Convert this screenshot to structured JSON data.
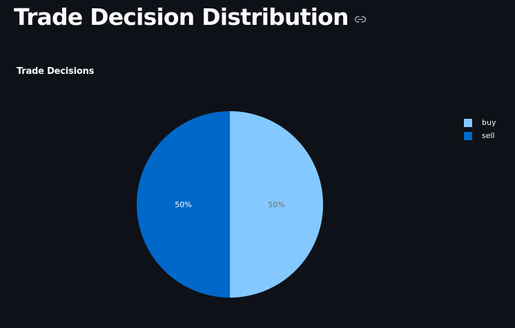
{
  "header": {
    "title": "Trade Decision Distribution",
    "link_icon": "link-icon"
  },
  "colors": {
    "background": "#0e1117",
    "text": "#fafafa",
    "buy": "#83c9ff",
    "sell": "#0068c9",
    "icon": "#a3a8b8"
  },
  "chart_data": {
    "type": "pie",
    "title": "Trade Decisions",
    "categories": [
      "buy",
      "sell"
    ],
    "values": [
      50,
      50
    ],
    "labels": [
      "50%",
      "50%"
    ],
    "legend": {
      "position": "top-right",
      "entries": [
        "buy",
        "sell"
      ]
    }
  }
}
